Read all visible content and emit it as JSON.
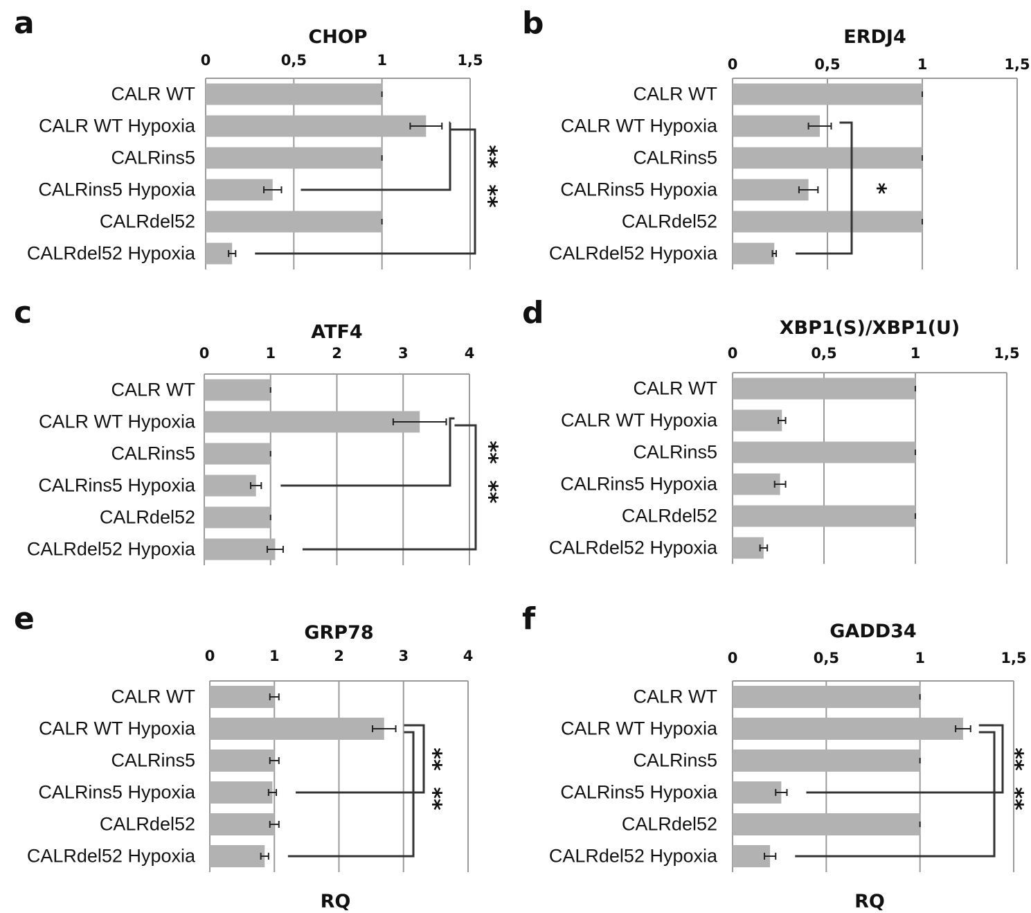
{
  "figure": {
    "x_axis_label": "RQ"
  },
  "chart_data": [
    {
      "panel": "a",
      "type": "bar",
      "orientation": "horizontal",
      "title": "CHOP",
      "categories": [
        "CALR WT",
        "CALR WT Hypoxia",
        "CALRins5",
        "CALRins5 Hypoxia",
        "CALRdel52",
        "CALRdel52 Hypoxia"
      ],
      "values": [
        1.0,
        1.25,
        1.0,
        0.38,
        1.0,
        0.15
      ],
      "errors": [
        0.0,
        0.09,
        0.0,
        0.05,
        0.0,
        0.02
      ],
      "xlim": [
        0,
        1.5
      ],
      "ticks": [
        "0",
        "0,5",
        "1",
        "1,5"
      ],
      "tick_values": [
        0,
        0.5,
        1,
        1.5
      ],
      "xlabel": "",
      "significance": [
        {
          "from": 1,
          "to": 3,
          "label": "**"
        },
        {
          "from": 1,
          "to": 5,
          "label": "**"
        }
      ],
      "bar_color": "#b2b2b2"
    },
    {
      "panel": "b",
      "type": "bar",
      "orientation": "horizontal",
      "title": "ERDJ4",
      "categories": [
        "CALR WT",
        "CALR WT Hypoxia",
        "CALRins5",
        "CALRins5 Hypoxia",
        "CALRdel52",
        "CALRdel52 Hypoxia"
      ],
      "values": [
        1.0,
        0.46,
        1.0,
        0.4,
        1.0,
        0.22
      ],
      "errors": [
        0.0,
        0.06,
        0.0,
        0.05,
        0.0,
        0.01
      ],
      "xlim": [
        0,
        1.5
      ],
      "ticks": [
        "0",
        "0,5",
        "1",
        "1,5"
      ],
      "tick_values": [
        0,
        0.5,
        1,
        1.5
      ],
      "xlabel": "",
      "significance": [
        {
          "from": 1,
          "to": 5,
          "label": "*"
        }
      ],
      "bar_color": "#b2b2b2"
    },
    {
      "panel": "c",
      "type": "bar",
      "orientation": "horizontal",
      "title": "ATF4",
      "categories": [
        "CALR WT",
        "CALR WT Hypoxia",
        "CALRins5",
        "CALRins5 Hypoxia",
        "CALRdel52",
        "CALRdel52 Hypoxia"
      ],
      "values": [
        1.0,
        3.25,
        1.0,
        0.78,
        1.0,
        1.07
      ],
      "errors": [
        0.0,
        0.4,
        0.0,
        0.08,
        0.0,
        0.12
      ],
      "xlim": [
        0,
        4
      ],
      "ticks": [
        "0",
        "1",
        "2",
        "3",
        "4"
      ],
      "tick_values": [
        0,
        1,
        2,
        3,
        4
      ],
      "xlabel": "",
      "significance": [
        {
          "from": 1,
          "to": 3,
          "label": "**"
        },
        {
          "from": 1,
          "to": 5,
          "label": "**"
        }
      ],
      "bar_color": "#b2b2b2"
    },
    {
      "panel": "d",
      "type": "bar",
      "orientation": "horizontal",
      "title": "XBP1(S)/XBP1(U)",
      "categories": [
        "CALR WT",
        "CALR WT Hypoxia",
        "CALRins5",
        "CALRins5 Hypoxia",
        "CALRdel52",
        "CALRdel52 Hypoxia"
      ],
      "values": [
        1.0,
        0.27,
        1.0,
        0.26,
        1.0,
        0.17
      ],
      "errors": [
        0.0,
        0.02,
        0.0,
        0.03,
        0.0,
        0.02
      ],
      "xlim": [
        0,
        1.5
      ],
      "ticks": [
        "0",
        "0,5",
        "1",
        "1,5"
      ],
      "tick_values": [
        0,
        0.5,
        1,
        1.5
      ],
      "xlabel": "",
      "significance": [],
      "bar_color": "#b2b2b2"
    },
    {
      "panel": "e",
      "type": "bar",
      "orientation": "horizontal",
      "title": "GRP78",
      "categories": [
        "CALR WT",
        "CALR WT Hypoxia",
        "CALRins5",
        "CALRins5 Hypoxia",
        "CALRdel52",
        "CALRdel52 Hypoxia"
      ],
      "values": [
        1.0,
        2.7,
        1.0,
        0.97,
        1.0,
        0.85
      ],
      "errors": [
        0.07,
        0.18,
        0.07,
        0.06,
        0.07,
        0.06
      ],
      "xlim": [
        0,
        4
      ],
      "ticks": [
        "0",
        "1",
        "2",
        "3",
        "4"
      ],
      "tick_values": [
        0,
        1,
        2,
        3,
        4
      ],
      "xlabel": "RQ",
      "significance": [
        {
          "from": 1,
          "to": 3,
          "label": "**"
        },
        {
          "from": 1,
          "to": 5,
          "label": "**"
        }
      ],
      "bar_color": "#b2b2b2"
    },
    {
      "panel": "f",
      "type": "bar",
      "orientation": "horizontal",
      "title": "GADD34",
      "categories": [
        "CALR WT",
        "CALR WT Hypoxia",
        "CALRins5",
        "CALRins5 Hypoxia",
        "CALRdel52",
        "CALRdel52 Hypoxia"
      ],
      "values": [
        1.0,
        1.23,
        1.0,
        0.26,
        1.0,
        0.2
      ],
      "errors": [
        0.0,
        0.04,
        0.0,
        0.03,
        0.0,
        0.03
      ],
      "xlim": [
        0,
        1.5
      ],
      "ticks": [
        "0",
        "0,5",
        "1",
        "1,5"
      ],
      "tick_values": [
        0,
        0.5,
        1,
        1.5
      ],
      "xlabel": "RQ",
      "significance": [
        {
          "from": 1,
          "to": 3,
          "label": "**"
        },
        {
          "from": 1,
          "to": 5,
          "label": "**"
        }
      ],
      "bar_color": "#b2b2b2"
    }
  ]
}
